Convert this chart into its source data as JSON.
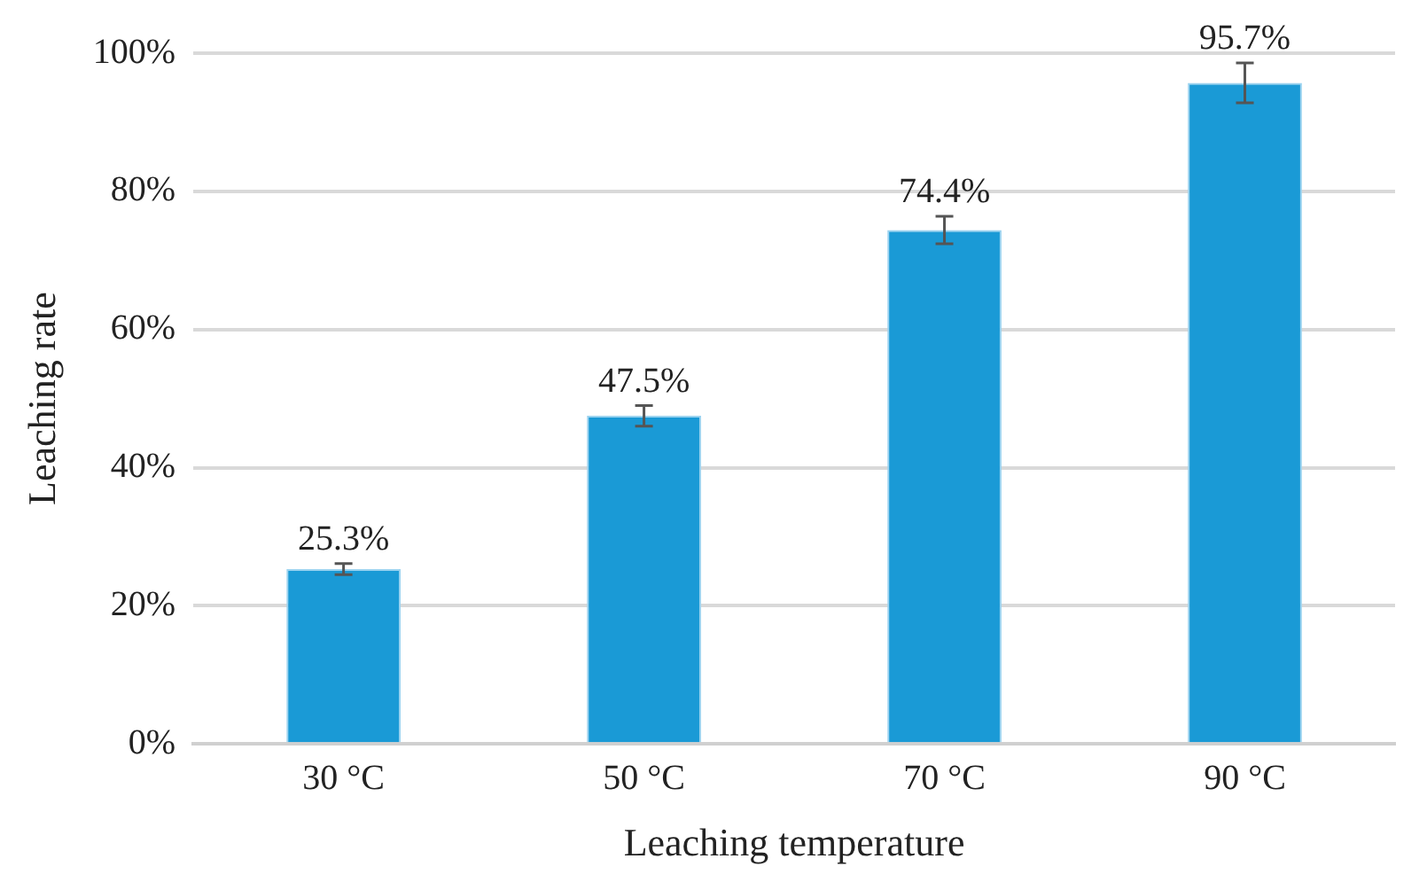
{
  "chart_data": {
    "type": "bar",
    "xlabel": "Leaching temperature",
    "ylabel": "Leaching rate",
    "categories": [
      "30 °C",
      "50 °C",
      "70 °C",
      "90 °C"
    ],
    "values": [
      25.3,
      47.5,
      74.4,
      95.7
    ],
    "errors": [
      0.8,
      1.5,
      2,
      2.9
    ],
    "value_labels": [
      "25.3%",
      "47.5%",
      "74.4%",
      "95.7%"
    ],
    "color": "#1a9ad6",
    "ylim": [
      0,
      100
    ],
    "yticks": [
      {
        "value": 0,
        "label": "0%"
      },
      {
        "value": 20,
        "label": "20%"
      },
      {
        "value": 40,
        "label": "40%"
      },
      {
        "value": 60,
        "label": "60%"
      },
      {
        "value": 80,
        "label": "80%"
      },
      {
        "value": 100,
        "label": "100%"
      }
    ],
    "grid": "y",
    "legend": false
  }
}
